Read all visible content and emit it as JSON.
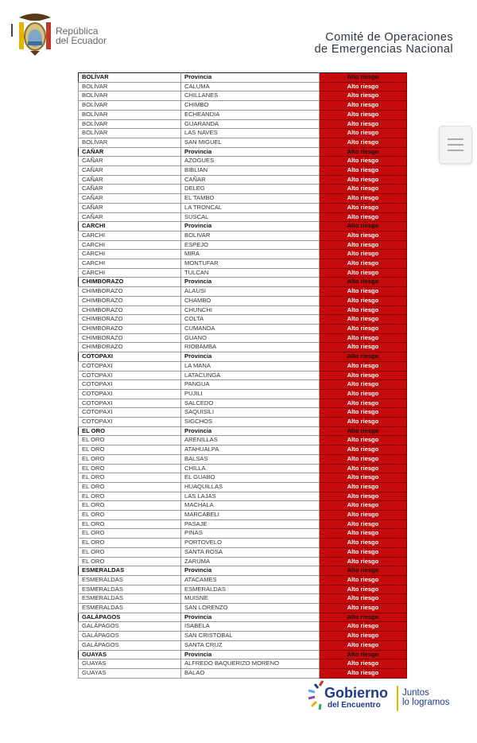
{
  "header": {
    "republica_line1": "República",
    "republica_line2": "del Ecuador",
    "comite_line1": "Comité de Operaciones",
    "comite_line2": "de Emergencias Nacional"
  },
  "table": {
    "status_color": "#c40a0a",
    "rows": [
      [
        "BOLÍVAR",
        "Provincia",
        "Alto riesgo",
        true
      ],
      [
        "BOLÍVAR",
        "CALUMA",
        "Alto riesgo"
      ],
      [
        "BOLÍVAR",
        "CHILLANES",
        "Alto riesgo"
      ],
      [
        "BOLÍVAR",
        "CHIMBO",
        "Alto riesgo"
      ],
      [
        "BOLÍVAR",
        "ECHEANDIA",
        "Alto riesgo"
      ],
      [
        "BOLÍVAR",
        "GUARANDA",
        "Alto riesgo"
      ],
      [
        "BOLÍVAR",
        "LAS NAVES",
        "Alto riesgo"
      ],
      [
        "BOLÍVAR",
        "SAN MIGUEL",
        "Alto riesgo"
      ],
      [
        "CAÑAR",
        "Provincia",
        "Alto riesgo",
        true
      ],
      [
        "CAÑAR",
        "AZOGUES",
        "Alto riesgo"
      ],
      [
        "CAÑAR",
        "BIBLIAN",
        "Alto riesgo"
      ],
      [
        "CAÑAR",
        "CAÑAR",
        "Alto riesgo"
      ],
      [
        "CAÑAR",
        "DELEG",
        "Alto riesgo"
      ],
      [
        "CAÑAR",
        "EL TAMBO",
        "Alto riesgo"
      ],
      [
        "CAÑAR",
        "LA TRONCAL",
        "Alto riesgo"
      ],
      [
        "CAÑAR",
        "SUSCAL",
        "Alto riesgo"
      ],
      [
        "CARCHI",
        "Provincia",
        "Alto riesgo",
        true
      ],
      [
        "CARCHI",
        "BOLIVAR",
        "Alto riesgo"
      ],
      [
        "CARCHI",
        "ESPEJO",
        "Alto riesgo"
      ],
      [
        "CARCHI",
        "MIRA",
        "Alto riesgo"
      ],
      [
        "CARCHI",
        "MONTUFAR",
        "Alto riesgo"
      ],
      [
        "CARCHI",
        "TULCAN",
        "Alto riesgo"
      ],
      [
        "CHIMBORAZO",
        "Provincia",
        "Alto riesgo",
        true
      ],
      [
        "CHIMBORAZO",
        "ALAUSI",
        "Alto riesgo"
      ],
      [
        "CHIMBORAZO",
        "CHAMBO",
        "Alto riesgo"
      ],
      [
        "CHIMBORAZO",
        "CHUNCHI",
        "Alto riesgo"
      ],
      [
        "CHIMBORAZO",
        "COLTA",
        "Alto riesgo"
      ],
      [
        "CHIMBORAZO",
        "CUMANDA",
        "Alto riesgo"
      ],
      [
        "CHIMBORAZO",
        "GUANO",
        "Alto riesgo"
      ],
      [
        "CHIMBORAZO",
        "RIOBAMBA",
        "Alto riesgo"
      ],
      [
        "COTOPAXI",
        "Provincia",
        "Alto riesgo",
        true
      ],
      [
        "COTOPAXI",
        "LA MANA",
        "Alto riesgo"
      ],
      [
        "COTOPAXI",
        "LATACUNGA",
        "Alto riesgo"
      ],
      [
        "COTOPAXI",
        "PANGUA",
        "Alto riesgo"
      ],
      [
        "COTOPAXI",
        "PUJILI",
        "Alto riesgo"
      ],
      [
        "COTOPAXI",
        "SALCEDO",
        "Alto riesgo"
      ],
      [
        "COTOPAXI",
        "SAQUISILI",
        "Alto riesgo"
      ],
      [
        "COTOPAXI",
        "SIGCHOS",
        "Alto riesgo"
      ],
      [
        "EL ORO",
        "Provincia",
        "Alto riesgo",
        true
      ],
      [
        "EL ORO",
        "ARENILLAS",
        "Alto riesgo"
      ],
      [
        "EL ORO",
        "ATAHUALPA",
        "Alto riesgo"
      ],
      [
        "EL ORO",
        "BALSAS",
        "Alto riesgo"
      ],
      [
        "EL ORO",
        "CHILLA",
        "Alto riesgo"
      ],
      [
        "EL ORO",
        "EL GUABO",
        "Alto riesgo"
      ],
      [
        "EL ORO",
        "HUAQUILLAS",
        "Alto riesgo"
      ],
      [
        "EL ORO",
        "LAS LAJAS",
        "Alto riesgo"
      ],
      [
        "EL ORO",
        "MACHALA",
        "Alto riesgo"
      ],
      [
        "EL ORO",
        "MARCABELI",
        "Alto riesgo"
      ],
      [
        "EL ORO",
        "PASAJE",
        "Alto riesgo"
      ],
      [
        "EL ORO",
        "PINAS",
        "Alto riesgo"
      ],
      [
        "EL ORO",
        "PORTOVELO",
        "Alto riesgo"
      ],
      [
        "EL ORO",
        "SANTA ROSA",
        "Alto riesgo"
      ],
      [
        "EL ORO",
        "ZARUMA",
        "Alto riesgo"
      ],
      [
        "ESMERALDAS",
        "Provincia",
        "Alto riesgo",
        true
      ],
      [
        "ESMERALDAS",
        "ATACAMES",
        "Alto riesgo"
      ],
      [
        "ESMERALDAS",
        "ESMERALDAS",
        "Alto riesgo"
      ],
      [
        "ESMERALDAS",
        "MUISNE",
        "Alto riesgo"
      ],
      [
        "ESMERALDAS",
        "SAN LORENZO",
        "Alto riesgo"
      ],
      [
        "GALÁPAGOS",
        "Provincia",
        "Alto riesgo",
        true
      ],
      [
        "GALÁPAGOS",
        "ISABELA",
        "Alto riesgo"
      ],
      [
        "GALÁPAGOS",
        "SAN CRISTOBAL",
        "Alto riesgo"
      ],
      [
        "GALÁPAGOS",
        "SANTA CRUZ",
        "Alto riesgo"
      ],
      [
        "GUAYAS",
        "Provincia",
        "Alto riesgo",
        true
      ],
      [
        "GUAYAS",
        "ALFREDO BAQUERIZO MORENO",
        "Alto riesgo"
      ],
      [
        "GUAYAS",
        "BALAO",
        "Alto riesgo"
      ]
    ]
  },
  "footer": {
    "gobierno": "Gobierno",
    "del_encuentro": "del Encuentro",
    "juntos": "Juntos",
    "lo_logramos": "lo logramos"
  },
  "menu_icon": "hamburger-menu-icon"
}
